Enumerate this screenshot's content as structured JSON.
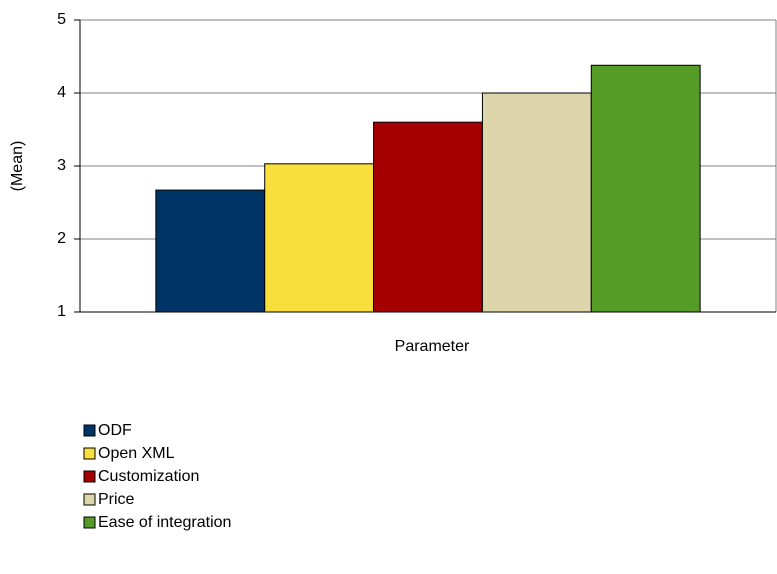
{
  "chart_data": {
    "type": "bar",
    "x_label": "Parameter",
    "y_label": "(Mean)",
    "categories": [
      null
    ],
    "series": [
      {
        "name": "ODF",
        "color": "#003366",
        "values": [
          2.67
        ]
      },
      {
        "name": "Open XML",
        "color": "#f8df3b",
        "values": [
          3.03
        ]
      },
      {
        "name": "Customization",
        "color": "#a50000",
        "values": [
          3.6
        ]
      },
      {
        "name": "Price",
        "color": "#ddd6ab",
        "values": [
          4.0
        ]
      },
      {
        "name": "Ease of integration",
        "color": "#559c26",
        "values": [
          4.38
        ]
      }
    ],
    "ylim": [
      1,
      5
    ],
    "yticks": [
      1,
      2,
      3,
      4,
      5
    ],
    "grid": true,
    "legend": "bottom"
  }
}
